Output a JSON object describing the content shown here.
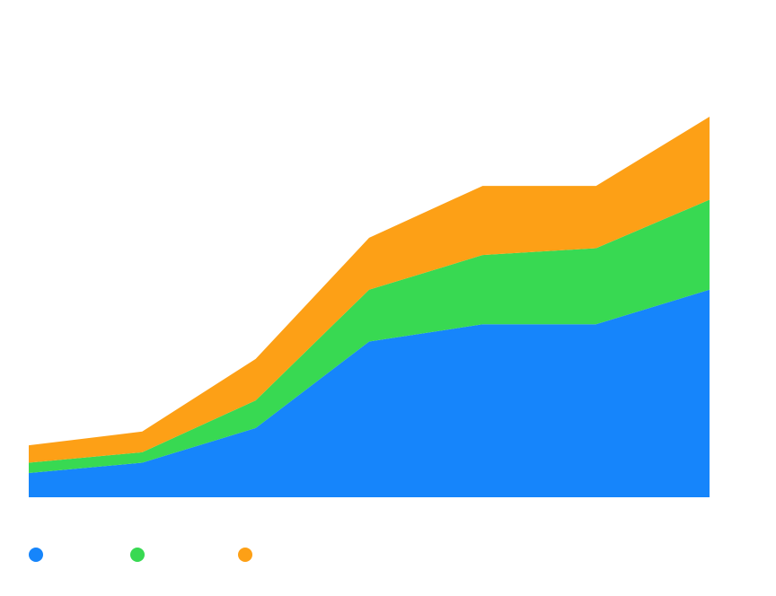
{
  "chart_data": {
    "type": "area",
    "stacked": true,
    "title": "",
    "xlabel": "",
    "ylabel": "",
    "x": [
      1,
      2,
      3,
      4,
      5,
      6,
      7
    ],
    "ylim": [
      0,
      110
    ],
    "grid": false,
    "legend_position": "bottom-left",
    "series": [
      {
        "color": "#1685fb",
        "values": [
          7,
          10,
          20,
          45,
          50,
          50,
          60
        ]
      },
      {
        "color": "#38d952",
        "values": [
          3,
          3,
          8,
          15,
          20,
          22,
          26
        ]
      },
      {
        "color": "#fda016",
        "values": [
          5,
          6,
          12,
          15,
          20,
          18,
          24
        ]
      }
    ]
  }
}
